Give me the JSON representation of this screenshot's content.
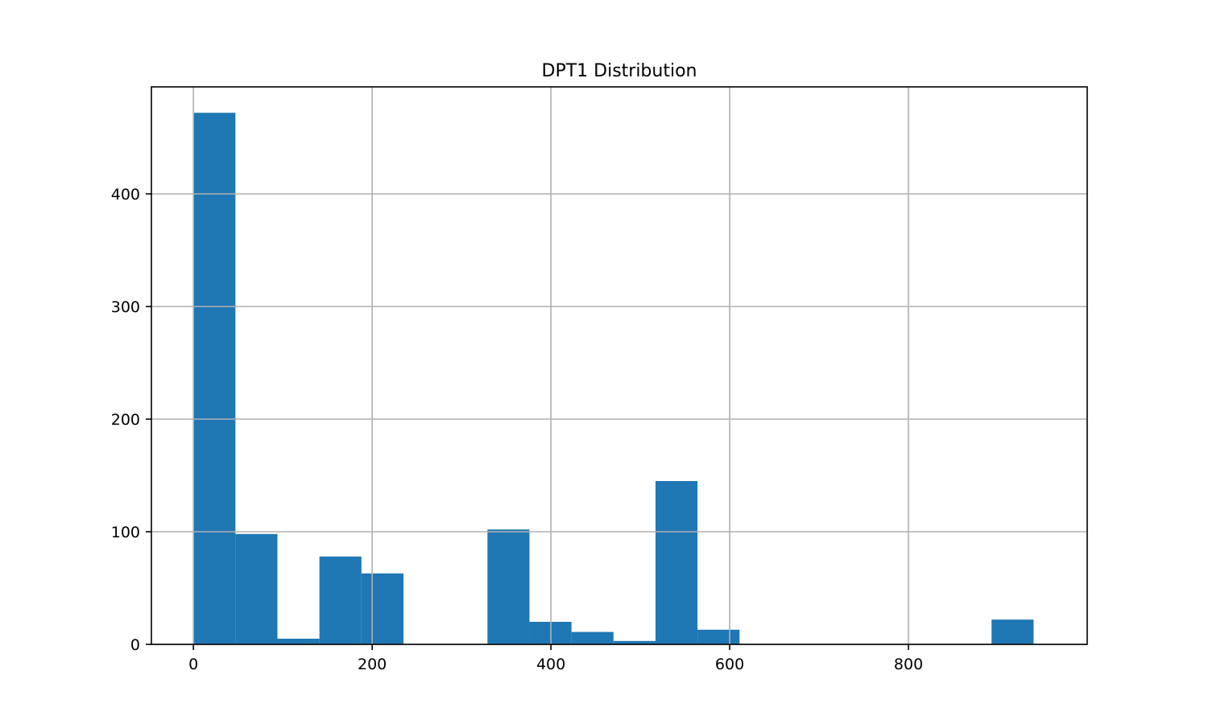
{
  "chart_data": {
    "type": "bar",
    "title": "DPT1 Distribution",
    "xlabel": "",
    "ylabel": "",
    "xlim": [
      -47,
      1000
    ],
    "ylim": [
      0,
      495
    ],
    "grid": true,
    "bar_color": "#1f77b4",
    "bin_edges": [
      0,
      47,
      94,
      141,
      188,
      235,
      282,
      329,
      376,
      423,
      470,
      517,
      564,
      611,
      658,
      705,
      752,
      799,
      846,
      893,
      940
    ],
    "values": [
      472,
      98,
      5,
      78,
      63,
      0,
      0,
      102,
      20,
      11,
      3,
      145,
      13,
      0,
      0,
      0,
      0,
      0,
      0,
      22
    ],
    "x_ticks": [
      0,
      200,
      400,
      600,
      800
    ],
    "y_ticks": [
      0,
      100,
      200,
      300,
      400
    ],
    "x_tick_labels": [
      "0",
      "200",
      "400",
      "600",
      "800"
    ],
    "y_tick_labels": [
      "0",
      "100",
      "200",
      "300",
      "400"
    ]
  }
}
